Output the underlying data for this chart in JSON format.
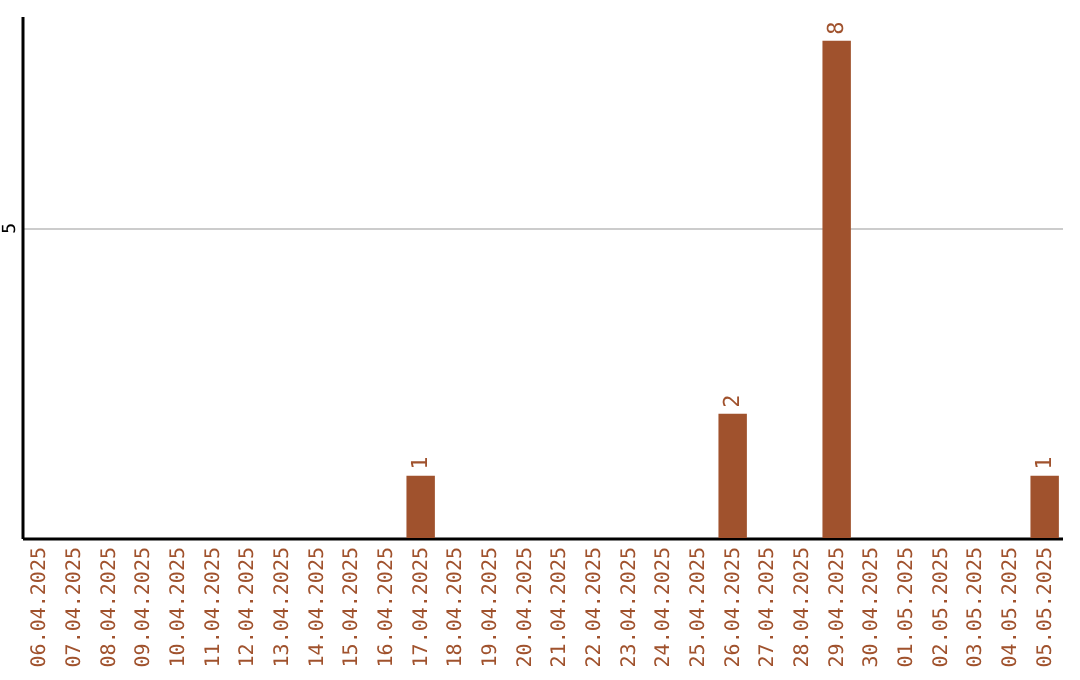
{
  "chart_data": {
    "type": "bar",
    "categories": [
      "06.04.2025",
      "07.04.2025",
      "08.04.2025",
      "09.04.2025",
      "10.04.2025",
      "11.04.2025",
      "12.04.2025",
      "13.04.2025",
      "14.04.2025",
      "15.04.2025",
      "16.04.2025",
      "17.04.2025",
      "18.04.2025",
      "19.04.2025",
      "20.04.2025",
      "21.04.2025",
      "22.04.2025",
      "23.04.2025",
      "24.04.2025",
      "25.04.2025",
      "26.04.2025",
      "27.04.2025",
      "28.04.2025",
      "29.04.2025",
      "30.04.2025",
      "01.05.2025",
      "02.05.2025",
      "03.05.2025",
      "04.05.2025",
      "05.05.2025"
    ],
    "values": [
      0,
      0,
      0,
      0,
      0,
      0,
      0,
      0,
      0,
      0,
      0,
      1,
      0,
      0,
      0,
      0,
      0,
      0,
      0,
      0,
      2,
      0,
      0,
      8,
      0,
      0,
      0,
      0,
      0,
      1
    ],
    "value_labels": [
      null,
      null,
      null,
      null,
      null,
      null,
      null,
      null,
      null,
      null,
      null,
      "1",
      null,
      null,
      null,
      null,
      null,
      null,
      null,
      null,
      "2",
      null,
      null,
      "8",
      null,
      null,
      null,
      null,
      null,
      "1"
    ],
    "color": "#a0522d",
    "ylim": [
      0,
      8.4
    ],
    "yticks": [
      5
    ],
    "grid": "y"
  }
}
